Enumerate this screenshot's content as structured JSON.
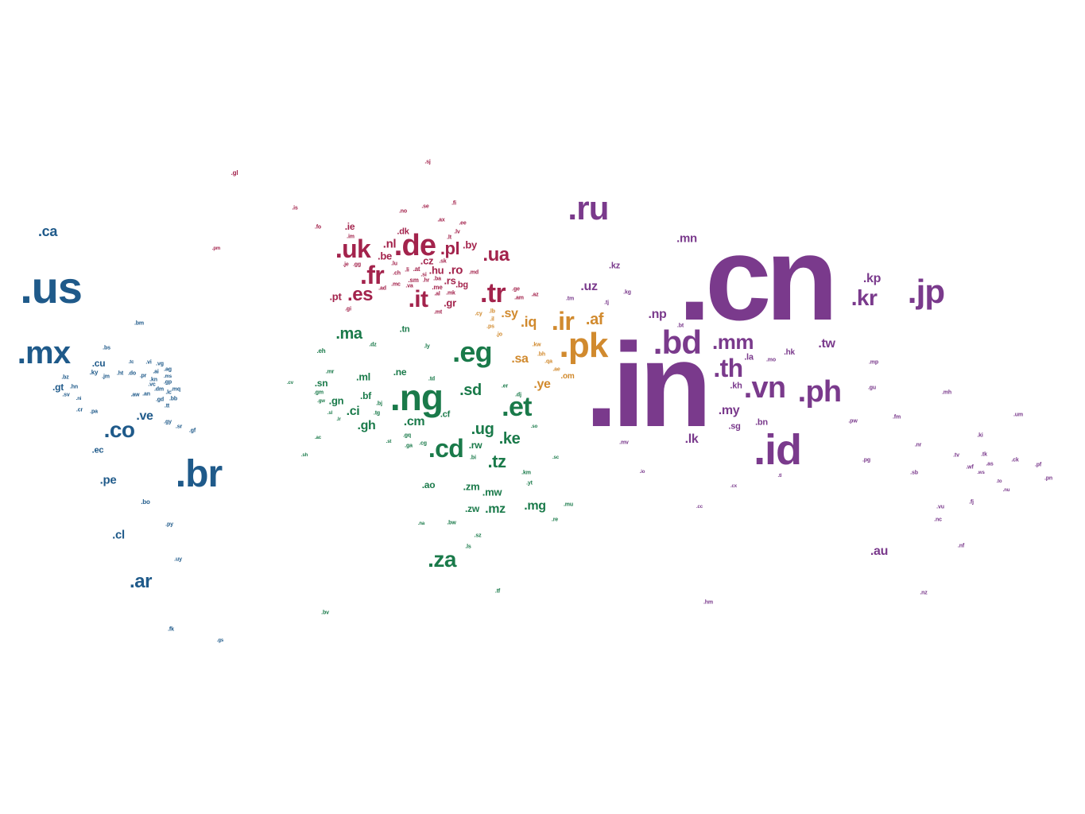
{
  "colors": {
    "americas": "#1f5a8a",
    "europe": "#a3234c",
    "africa": "#1a7a4a",
    "middle_east": "#d18a2e",
    "asia_pacific": "#7a3a8c"
  },
  "words": [
    {
      "t": ".cn",
      "r": "asia_pacific"
    },
    {
      "t": ".in",
      "r": "asia_pacific"
    },
    {
      "t": ".us",
      "r": "americas"
    },
    {
      "t": ".br",
      "r": "americas"
    },
    {
      "t": ".mx",
      "r": "americas"
    },
    {
      "t": ".id",
      "r": "asia_pacific"
    },
    {
      "t": ".ru",
      "r": "asia_pacific"
    },
    {
      "t": ".jp",
      "r": "asia_pacific"
    },
    {
      "t": ".pk",
      "r": "middle_east"
    },
    {
      "t": ".ng",
      "r": "africa"
    },
    {
      "t": ".bd",
      "r": "asia_pacific"
    },
    {
      "t": ".de",
      "r": "europe"
    },
    {
      "t": ".ph",
      "r": "asia_pacific"
    },
    {
      "t": ".vn",
      "r": "asia_pacific"
    },
    {
      "t": ".et",
      "r": "africa"
    },
    {
      "t": ".eg",
      "r": "africa"
    },
    {
      "t": ".cd",
      "r": "africa"
    },
    {
      "t": ".th",
      "r": "asia_pacific"
    },
    {
      "t": ".tr",
      "r": "europe"
    },
    {
      "t": ".ir",
      "r": "middle_east"
    },
    {
      "t": ".fr",
      "r": "europe"
    },
    {
      "t": ".uk",
      "r": "europe"
    },
    {
      "t": ".it",
      "r": "europe"
    },
    {
      "t": ".mm",
      "r": "asia_pacific"
    },
    {
      "t": ".kr",
      "r": "asia_pacific"
    },
    {
      "t": ".co",
      "r": "americas"
    },
    {
      "t": ".za",
      "r": "africa"
    },
    {
      "t": ".es",
      "r": "europe"
    },
    {
      "t": ".ua",
      "r": "europe"
    },
    {
      "t": ".ar",
      "r": "americas"
    },
    {
      "t": ".pl",
      "r": "europe"
    },
    {
      "t": ".tz",
      "r": "africa"
    },
    {
      "t": ".ke",
      "r": "africa"
    },
    {
      "t": ".ug",
      "r": "africa"
    },
    {
      "t": ".sd",
      "r": "africa"
    },
    {
      "t": ".ma",
      "r": "africa"
    },
    {
      "t": ".ca",
      "r": "americas"
    },
    {
      "t": ".af",
      "r": "middle_east"
    },
    {
      "t": ".iq",
      "r": "middle_east"
    },
    {
      "t": ".sy",
      "r": "middle_east"
    },
    {
      "t": ".my",
      "r": "asia_pacific"
    },
    {
      "t": ".ve",
      "r": "americas"
    },
    {
      "t": ".pe",
      "r": "americas"
    },
    {
      "t": ".uz",
      "r": "asia_pacific"
    },
    {
      "t": ".np",
      "r": "asia_pacific"
    },
    {
      "t": ".kp",
      "r": "asia_pacific"
    },
    {
      "t": ".tw",
      "r": "asia_pacific"
    },
    {
      "t": ".mn",
      "r": "asia_pacific"
    },
    {
      "t": ".au",
      "r": "asia_pacific"
    },
    {
      "t": ".lk",
      "r": "asia_pacific"
    },
    {
      "t": ".gh",
      "r": "africa"
    },
    {
      "t": ".cm",
      "r": "africa"
    },
    {
      "t": ".ci",
      "r": "africa"
    },
    {
      "t": ".mg",
      "r": "africa"
    },
    {
      "t": ".mz",
      "r": "africa"
    },
    {
      "t": ".ye",
      "r": "middle_east"
    },
    {
      "t": ".sa",
      "r": "middle_east"
    },
    {
      "t": ".cl",
      "r": "americas"
    },
    {
      "t": ".ro",
      "r": "europe"
    },
    {
      "t": ".nl",
      "r": "europe"
    },
    {
      "t": ".hu",
      "r": "europe"
    },
    {
      "t": ".cz",
      "r": "europe"
    },
    {
      "t": ".rs",
      "r": "europe"
    },
    {
      "t": ".gr",
      "r": "europe"
    },
    {
      "t": ".be",
      "r": "europe"
    },
    {
      "t": ".pt",
      "r": "europe"
    },
    {
      "t": ".bg",
      "r": "europe"
    },
    {
      "t": ".by",
      "r": "europe"
    },
    {
      "t": ".ie",
      "r": "europe"
    },
    {
      "t": ".dk",
      "r": "europe"
    },
    {
      "t": ".kz",
      "r": "asia_pacific"
    },
    {
      "t": ".kh",
      "r": "asia_pacific"
    },
    {
      "t": ".sg",
      "r": "asia_pacific"
    },
    {
      "t": ".bn",
      "r": "asia_pacific"
    },
    {
      "t": ".la",
      "r": "asia_pacific"
    },
    {
      "t": ".hk",
      "r": "asia_pacific"
    },
    {
      "t": ".cu",
      "r": "americas"
    },
    {
      "t": ".gt",
      "r": "americas"
    },
    {
      "t": ".ec",
      "r": "americas"
    },
    {
      "t": ".bo",
      "r": "americas"
    },
    {
      "t": ".sn",
      "r": "africa"
    },
    {
      "t": ".ml",
      "r": "africa"
    },
    {
      "t": ".ne",
      "r": "africa"
    },
    {
      "t": ".bf",
      "r": "africa"
    },
    {
      "t": ".gn",
      "r": "africa"
    },
    {
      "t": ".rw",
      "r": "africa"
    },
    {
      "t": ".mw",
      "r": "africa"
    },
    {
      "t": ".zm",
      "r": "africa"
    },
    {
      "t": ".zw",
      "r": "africa"
    },
    {
      "t": ".ao",
      "r": "africa"
    },
    {
      "t": ".tn",
      "r": "africa"
    },
    {
      "t": ".cf",
      "r": "africa"
    },
    {
      "t": ".om",
      "r": "middle_east"
    },
    {
      "t": ".gl",
      "r": "europe"
    },
    {
      "t": ".sj",
      "r": "europe"
    },
    {
      "t": ".is",
      "r": "europe"
    },
    {
      "t": ".no",
      "r": "europe"
    },
    {
      "t": ".se",
      "r": "europe"
    },
    {
      "t": ".fi",
      "r": "europe"
    },
    {
      "t": ".ax",
      "r": "europe"
    },
    {
      "t": ".ee",
      "r": "europe"
    },
    {
      "t": ".fo",
      "r": "europe"
    },
    {
      "t": ".lv",
      "r": "europe"
    },
    {
      "t": ".lt",
      "r": "europe"
    },
    {
      "t": ".im",
      "r": "europe"
    },
    {
      "t": ".lu",
      "r": "europe"
    },
    {
      "t": ".li",
      "r": "europe"
    },
    {
      "t": ".at",
      "r": "europe"
    },
    {
      "t": ".sk",
      "r": "europe"
    },
    {
      "t": ".ch",
      "r": "europe"
    },
    {
      "t": ".si",
      "r": "europe"
    },
    {
      "t": ".md",
      "r": "europe"
    },
    {
      "t": ".je",
      "r": "europe"
    },
    {
      "t": ".gg",
      "r": "europe"
    },
    {
      "t": ".mc",
      "r": "europe"
    },
    {
      "t": ".sm",
      "r": "europe"
    },
    {
      "t": ".hr",
      "r": "europe"
    },
    {
      "t": ".ba",
      "r": "europe"
    },
    {
      "t": ".va",
      "r": "europe"
    },
    {
      "t": ".me",
      "r": "europe"
    },
    {
      "t": ".ad",
      "r": "europe"
    },
    {
      "t": ".al",
      "r": "europe"
    },
    {
      "t": ".mk",
      "r": "europe"
    },
    {
      "t": ".gi",
      "r": "europe"
    },
    {
      "t": ".mt",
      "r": "europe"
    },
    {
      "t": ".pm",
      "r": "europe"
    },
    {
      "t": ".ge",
      "r": "europe"
    },
    {
      "t": ".am",
      "r": "europe"
    },
    {
      "t": ".az",
      "r": "europe"
    },
    {
      "t": ".cy",
      "r": "middle_east"
    },
    {
      "t": ".lb",
      "r": "middle_east"
    },
    {
      "t": ".il",
      "r": "middle_east"
    },
    {
      "t": ".ps",
      "r": "middle_east"
    },
    {
      "t": ".jo",
      "r": "middle_east"
    },
    {
      "t": ".kw",
      "r": "middle_east"
    },
    {
      "t": ".bh",
      "r": "middle_east"
    },
    {
      "t": ".qa",
      "r": "middle_east"
    },
    {
      "t": ".ae",
      "r": "middle_east"
    },
    {
      "t": ".tm",
      "r": "asia_pacific"
    },
    {
      "t": ".tj",
      "r": "asia_pacific"
    },
    {
      "t": ".kg",
      "r": "asia_pacific"
    },
    {
      "t": ".bt",
      "r": "asia_pacific"
    },
    {
      "t": ".mo",
      "r": "asia_pacific"
    },
    {
      "t": ".mp",
      "r": "asia_pacific"
    },
    {
      "t": ".gu",
      "r": "asia_pacific"
    },
    {
      "t": ".mh",
      "r": "asia_pacific"
    },
    {
      "t": ".pw",
      "r": "asia_pacific"
    },
    {
      "t": ".fm",
      "r": "asia_pacific"
    },
    {
      "t": ".um",
      "r": "asia_pacific"
    },
    {
      "t": ".mv",
      "r": "asia_pacific"
    },
    {
      "t": ".io",
      "r": "asia_pacific"
    },
    {
      "t": ".tl",
      "r": "asia_pacific"
    },
    {
      "t": ".cx",
      "r": "asia_pacific"
    },
    {
      "t": ".cc",
      "r": "asia_pacific"
    },
    {
      "t": ".pg",
      "r": "asia_pacific"
    },
    {
      "t": ".sb",
      "r": "asia_pacific"
    },
    {
      "t": ".nr",
      "r": "asia_pacific"
    },
    {
      "t": ".ki",
      "r": "asia_pacific"
    },
    {
      "t": ".tv",
      "r": "asia_pacific"
    },
    {
      "t": ".tk",
      "r": "asia_pacific"
    },
    {
      "t": ".wf",
      "r": "asia_pacific"
    },
    {
      "t": ".as",
      "r": "asia_pacific"
    },
    {
      "t": ".ws",
      "r": "asia_pacific"
    },
    {
      "t": ".ck",
      "r": "asia_pacific"
    },
    {
      "t": ".pf",
      "r": "asia_pacific"
    },
    {
      "t": ".to",
      "r": "asia_pacific"
    },
    {
      "t": ".nu",
      "r": "asia_pacific"
    },
    {
      "t": ".pn",
      "r": "asia_pacific"
    },
    {
      "t": ".fj",
      "r": "asia_pacific"
    },
    {
      "t": ".vu",
      "r": "asia_pacific"
    },
    {
      "t": ".nc",
      "r": "asia_pacific"
    },
    {
      "t": ".nf",
      "r": "asia_pacific"
    },
    {
      "t": ".nz",
      "r": "asia_pacific"
    },
    {
      "t": ".hm",
      "r": "asia_pacific"
    },
    {
      "t": ".bm",
      "r": "americas"
    },
    {
      "t": ".bs",
      "r": "americas"
    },
    {
      "t": ".tc",
      "r": "americas"
    },
    {
      "t": ".vi",
      "r": "americas"
    },
    {
      "t": ".vg",
      "r": "americas"
    },
    {
      "t": ".ky",
      "r": "americas"
    },
    {
      "t": ".jm",
      "r": "americas"
    },
    {
      "t": ".ht",
      "r": "americas"
    },
    {
      "t": ".do",
      "r": "americas"
    },
    {
      "t": ".pr",
      "r": "americas"
    },
    {
      "t": ".ai",
      "r": "americas"
    },
    {
      "t": ".ag",
      "r": "americas"
    },
    {
      "t": ".kn",
      "r": "americas"
    },
    {
      "t": ".ms",
      "r": "americas"
    },
    {
      "t": ".gp",
      "r": "americas"
    },
    {
      "t": ".bz",
      "r": "americas"
    },
    {
      "t": ".hn",
      "r": "americas"
    },
    {
      "t": ".sv",
      "r": "americas"
    },
    {
      "t": ".ni",
      "r": "americas"
    },
    {
      "t": ".vc",
      "r": "americas"
    },
    {
      "t": ".dm",
      "r": "americas"
    },
    {
      "t": ".mq",
      "r": "americas"
    },
    {
      "t": ".aw",
      "r": "americas"
    },
    {
      "t": ".an",
      "r": "americas"
    },
    {
      "t": ".lc",
      "r": "americas"
    },
    {
      "t": ".gd",
      "r": "americas"
    },
    {
      "t": ".bb",
      "r": "americas"
    },
    {
      "t": ".tt",
      "r": "americas"
    },
    {
      "t": ".cr",
      "r": "americas"
    },
    {
      "t": ".pa",
      "r": "americas"
    },
    {
      "t": ".gy",
      "r": "americas"
    },
    {
      "t": ".sr",
      "r": "americas"
    },
    {
      "t": ".gf",
      "r": "americas"
    },
    {
      "t": ".py",
      "r": "americas"
    },
    {
      "t": ".uy",
      "r": "americas"
    },
    {
      "t": ".fk",
      "r": "americas"
    },
    {
      "t": ".gs",
      "r": "americas"
    },
    {
      "t": ".eh",
      "r": "africa"
    },
    {
      "t": ".dz",
      "r": "africa"
    },
    {
      "t": ".ly",
      "r": "africa"
    },
    {
      "t": ".mr",
      "r": "africa"
    },
    {
      "t": ".cv",
      "r": "africa"
    },
    {
      "t": ".gm",
      "r": "africa"
    },
    {
      "t": ".gw",
      "r": "africa"
    },
    {
      "t": ".sl",
      "r": "africa"
    },
    {
      "t": ".lr",
      "r": "africa"
    },
    {
      "t": ".bj",
      "r": "africa"
    },
    {
      "t": ".tg",
      "r": "africa"
    },
    {
      "t": ".td",
      "r": "africa"
    },
    {
      "t": ".er",
      "r": "africa"
    },
    {
      "t": ".dj",
      "r": "africa"
    },
    {
      "t": ".so",
      "r": "africa"
    },
    {
      "t": ".ac",
      "r": "africa"
    },
    {
      "t": ".st",
      "r": "africa"
    },
    {
      "t": ".gq",
      "r": "africa"
    },
    {
      "t": ".ga",
      "r": "africa"
    },
    {
      "t": ".cg",
      "r": "africa"
    },
    {
      "t": ".bi",
      "r": "africa"
    },
    {
      "t": ".sh",
      "r": "africa"
    },
    {
      "t": ".sc",
      "r": "africa"
    },
    {
      "t": ".km",
      "r": "africa"
    },
    {
      "t": ".yt",
      "r": "africa"
    },
    {
      "t": ".mu",
      "r": "africa"
    },
    {
      "t": ".re",
      "r": "africa"
    },
    {
      "t": ".na",
      "r": "africa"
    },
    {
      "t": ".bw",
      "r": "africa"
    },
    {
      "t": ".sz",
      "r": "africa"
    },
    {
      "t": ".ls",
      "r": "africa"
    },
    {
      "t": ".tf",
      "r": "africa"
    },
    {
      "t": ".bv",
      "r": "africa"
    }
  ]
}
